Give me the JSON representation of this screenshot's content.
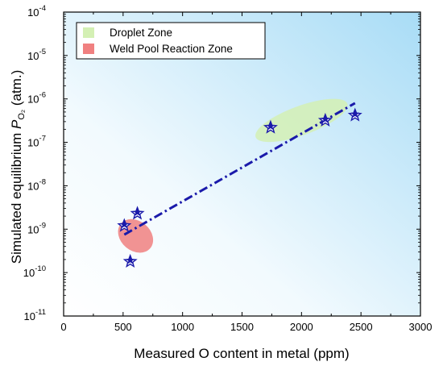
{
  "chart_data": {
    "type": "scatter",
    "xlabel": "Measured O content in metal (ppm)",
    "ylabel": {
      "main": "Simulated equilibrium ",
      "symbol": "P",
      "subscript": "O₂",
      "unit": " (atm.)"
    },
    "xlim": [
      0,
      3000
    ],
    "ylim_log10": [
      -11,
      -4
    ],
    "y_scale": "log",
    "x_ticks": [
      "0",
      "500",
      "1000",
      "1500",
      "2000",
      "2500",
      "3000"
    ],
    "x_tick_values": [
      0,
      500,
      1000,
      1500,
      2000,
      2500,
      3000
    ],
    "y_tick_exponents": [
      -11,
      -10,
      -9,
      -8,
      -7,
      -6,
      -5,
      -4
    ],
    "y_tick_base": "10",
    "grid": false,
    "background": "gradient white (bottom-left) to light blue (top-right)",
    "legend_position": "top-left",
    "zones": [
      {
        "name": "Droplet Zone",
        "color": "#d4f0b4",
        "center": [
          2000,
          3.2e-07
        ],
        "x_range": [
          1590,
          2410
        ],
        "y_range": [
          9e-08,
          1.5e-06
        ],
        "tilt_deg": -20
      },
      {
        "name": "Weld Pool Reaction Zone",
        "color": "#f08080",
        "center": [
          605,
          7e-10
        ],
        "x_range": [
          450,
          760
        ],
        "y_range": [
          1.2e-10,
          4e-09
        ],
        "tilt_deg": -50
      }
    ],
    "series": [
      {
        "marker": "star",
        "color": "#1a1aaa",
        "x": [
          510,
          560,
          620,
          1740,
          2200,
          2450
        ],
        "y": [
          1.2e-09,
          1.8e-10,
          2.3e-09,
          2.2e-07,
          3.2e-07,
          4.2e-07
        ]
      }
    ],
    "trendline": {
      "style": "dash-dot",
      "color": "#1a1aaa",
      "x": [
        510,
        2450
      ],
      "y": [
        7.5e-10,
        8e-07
      ]
    }
  },
  "legend": {
    "items": [
      {
        "label": "Droplet Zone",
        "color": "#d4f0b4"
      },
      {
        "label": "Weld Pool Reaction Zone",
        "color": "#f08080"
      }
    ]
  }
}
